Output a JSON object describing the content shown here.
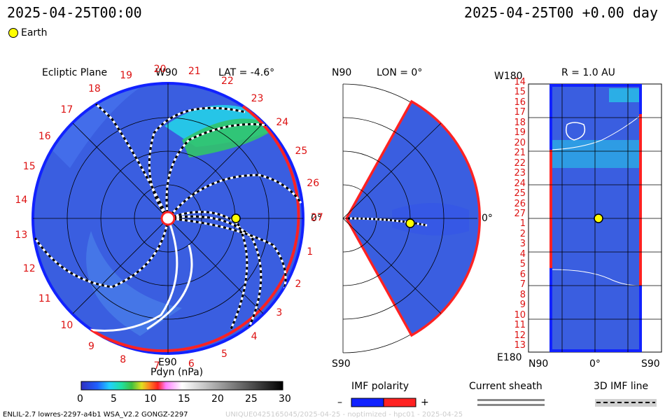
{
  "header": {
    "left_time": "2025-04-25T00:00",
    "right_time": "2025-04-25T00 +0.00 day",
    "legend_earth": "Earth"
  },
  "panels": {
    "ecliptic": {
      "title": "Ecliptic Plane",
      "lat": "LAT = -4.6°",
      "w90": "W90",
      "e90": "E90",
      "zero": "0°",
      "carrington_labels": [
        "14",
        "15",
        "16",
        "17",
        "18",
        "19",
        "20",
        "21",
        "22",
        "23",
        "24",
        "25",
        "26",
        "27",
        "1",
        "2",
        "3",
        "4",
        "5",
        "6",
        "7",
        "8",
        "9",
        "10",
        "11",
        "12",
        "13"
      ]
    },
    "meridional": {
      "n90": "N90",
      "s90": "S90",
      "lon": "LON = 0°",
      "zero": "0°"
    },
    "radial": {
      "title": "R = 1.0 AU",
      "w180": "W180",
      "e180": "E180",
      "n90": "N90",
      "s90": "S90",
      "zero": "0°",
      "row_labels": [
        "14",
        "15",
        "16",
        "17",
        "18",
        "19",
        "20",
        "21",
        "22",
        "23",
        "24",
        "25",
        "26",
        "27",
        "1",
        "2",
        "3",
        "4",
        "5",
        "6",
        "7",
        "8",
        "9",
        "10",
        "11",
        "12",
        "13"
      ]
    }
  },
  "colorbar": {
    "title": "Pdyn (nPa)",
    "ticks": [
      "0",
      "5",
      "10",
      "15",
      "20",
      "25",
      "30"
    ]
  },
  "legends": {
    "imf_polarity": "IMF polarity",
    "minus": "–",
    "plus": "+",
    "current_sheath": "Current sheath",
    "imf_line_3d": "3D IMF line"
  },
  "footer": {
    "model": "ENLIL-2.7 lowres-2297-a4b1 WSA_V2.2 GONGZ-2297",
    "run_id": "UNIQUE0425165045/2025-04-25 - noptimized - hpc01 - 2025-04-25"
  },
  "colors": {
    "background_flow": "#3a5ee0",
    "high_density": "#32c46a",
    "polarity_negative": "#1122ff",
    "polarity_positive": "#ff2222",
    "earth": "#ffff00"
  }
}
